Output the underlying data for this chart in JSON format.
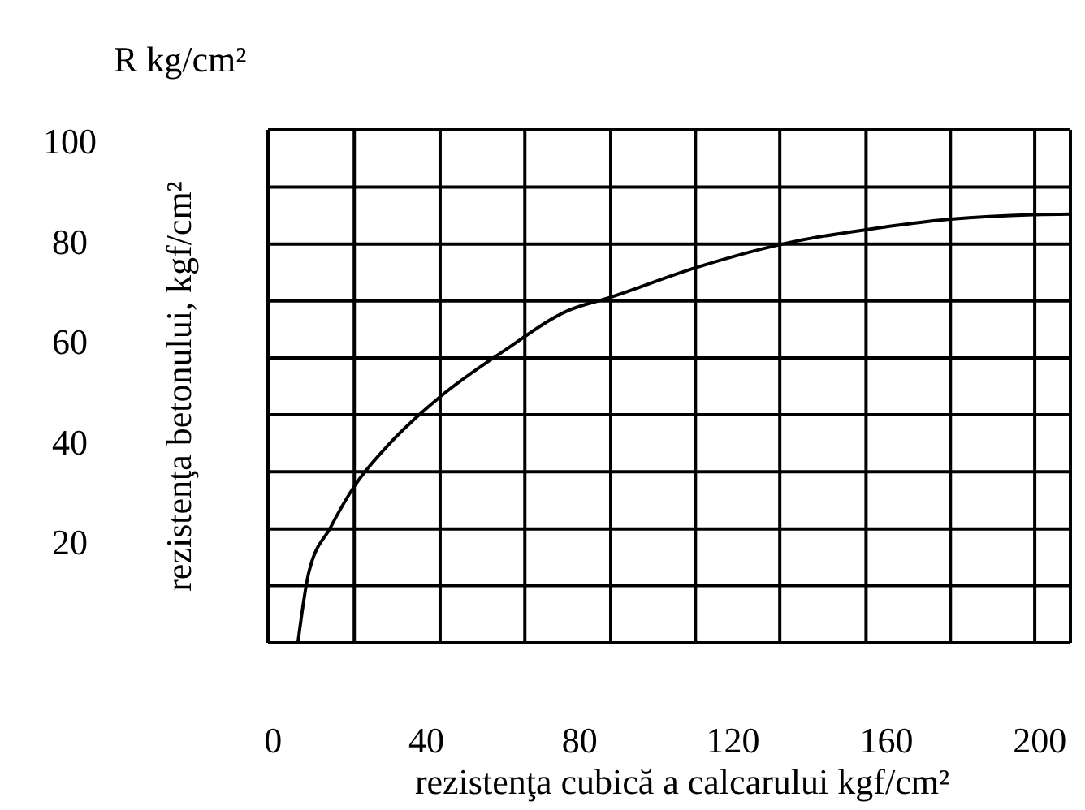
{
  "chart_data": {
    "type": "line",
    "title": "R kg/cm²",
    "xlabel": "rezistenţa cubică a calcarului kgf/cm²",
    "ylabel": "rezistenţa betonului, kgf/cm²",
    "x": [
      6.5,
      9.3,
      15,
      21.2,
      30.5,
      43.5,
      60.2,
      77.1,
      88,
      110.2,
      136.4,
      154.7,
      176.7,
      198.7,
      208
    ],
    "series": [
      {
        "color": "#000000",
        "values": [
          0,
          13.9,
          23,
          31.2,
          39.8,
          49,
          58.2,
          66.3,
          68.9,
          74.8,
          80.1,
          82.4,
          84.5,
          85.4,
          85.5
        ]
      }
    ],
    "xlim": [
      -1.3,
      208
    ],
    "xticks": [
      0,
      40,
      80,
      120,
      160,
      200,
      {
        "value": 21.2,
        "label": null
      },
      {
        "value": 43.6,
        "label": null
      },
      {
        "value": 65.7,
        "label": null
      },
      {
        "value": 88.1,
        "label": null
      },
      {
        "value": 110.2,
        "label": null
      },
      {
        "value": 132.2,
        "label": null
      },
      {
        "value": 154.7,
        "label": null
      },
      {
        "value": 176.7,
        "label": null
      },
      {
        "value": 198.7,
        "label": null
      }
    ],
    "ylim": [
      0,
      102.3
    ],
    "yticks": [
      20,
      40,
      60,
      80,
      100,
      {
        "value": 11.4,
        "label": null
      },
      {
        "value": 22.7,
        "label": null
      },
      {
        "value": 34.1,
        "label": null
      },
      {
        "value": 45.5,
        "label": null
      },
      {
        "value": 56.8,
        "label": null
      },
      {
        "value": 68.2,
        "label": null
      },
      {
        "value": 79.5,
        "label": null
      },
      {
        "value": 90.9,
        "label": null
      }
    ],
    "grid": true,
    "line_style": "solid"
  }
}
